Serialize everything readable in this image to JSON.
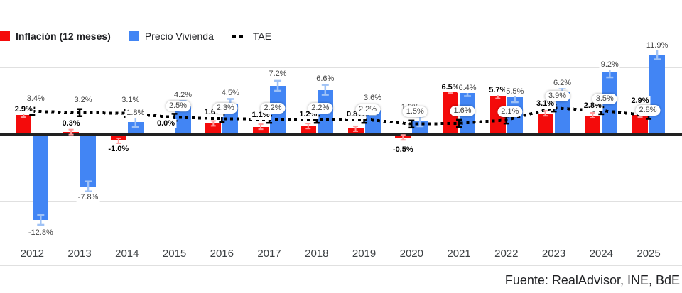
{
  "legend": {
    "items": [
      {
        "label": "Inflación (12 meses)",
        "color": "#f40b0b",
        "marker": "square"
      },
      {
        "label": "Precio Vivienda",
        "color": "#4285f4",
        "marker": "square"
      },
      {
        "label": "TAE",
        "color": "#000000",
        "marker": "dotted"
      }
    ]
  },
  "footer": {
    "source": "Fuente: RealAdvisor, INE, BdE"
  },
  "colors": {
    "inflacion_bar": "#f40b0b",
    "inflacion_errorbar": "#ff9b9b",
    "vivienda_bar": "#4285f4",
    "vivienda_errorbar": "#9fc2f6",
    "tae_line": "#000000",
    "gridline": "#e0e0e0",
    "axis": "#212121"
  },
  "chart_data": {
    "type": "bar",
    "categories": [
      "2012",
      "2013",
      "2014",
      "2015",
      "2016",
      "2017",
      "2018",
      "2019",
      "2020",
      "2021",
      "2022",
      "2023",
      "2024",
      "2025"
    ],
    "series": [
      {
        "name": "Inflación (12 meses)",
        "type": "bar",
        "color": "#f40b0b",
        "values": [
          2.9,
          0.3,
          -1.0,
          0.0,
          1.6,
          1.1,
          1.2,
          0.8,
          -0.5,
          6.5,
          5.7,
          3.1,
          2.8,
          2.9
        ]
      },
      {
        "name": "Precio Vivienda",
        "type": "bar",
        "color": "#4285f4",
        "values": [
          -12.8,
          -7.8,
          1.8,
          4.2,
          4.5,
          7.2,
          6.6,
          3.6,
          1.9,
          6.4,
          5.5,
          6.2,
          9.2,
          11.9
        ]
      },
      {
        "name": "TAE",
        "type": "line-dotted",
        "color": "#000000",
        "values": [
          3.4,
          3.2,
          3.1,
          2.5,
          2.3,
          2.2,
          2.2,
          2.2,
          1.5,
          1.6,
          2.1,
          3.9,
          3.5,
          2.8
        ]
      }
    ],
    "value_label_format": "{value}%",
    "title": "",
    "xlabel": "",
    "ylabel": "",
    "ylim": [
      -20,
      19
    ],
    "gridlines": [
      10,
      0,
      -10
    ],
    "grid": true,
    "legend_position": "top-left",
    "error_bars": true
  }
}
